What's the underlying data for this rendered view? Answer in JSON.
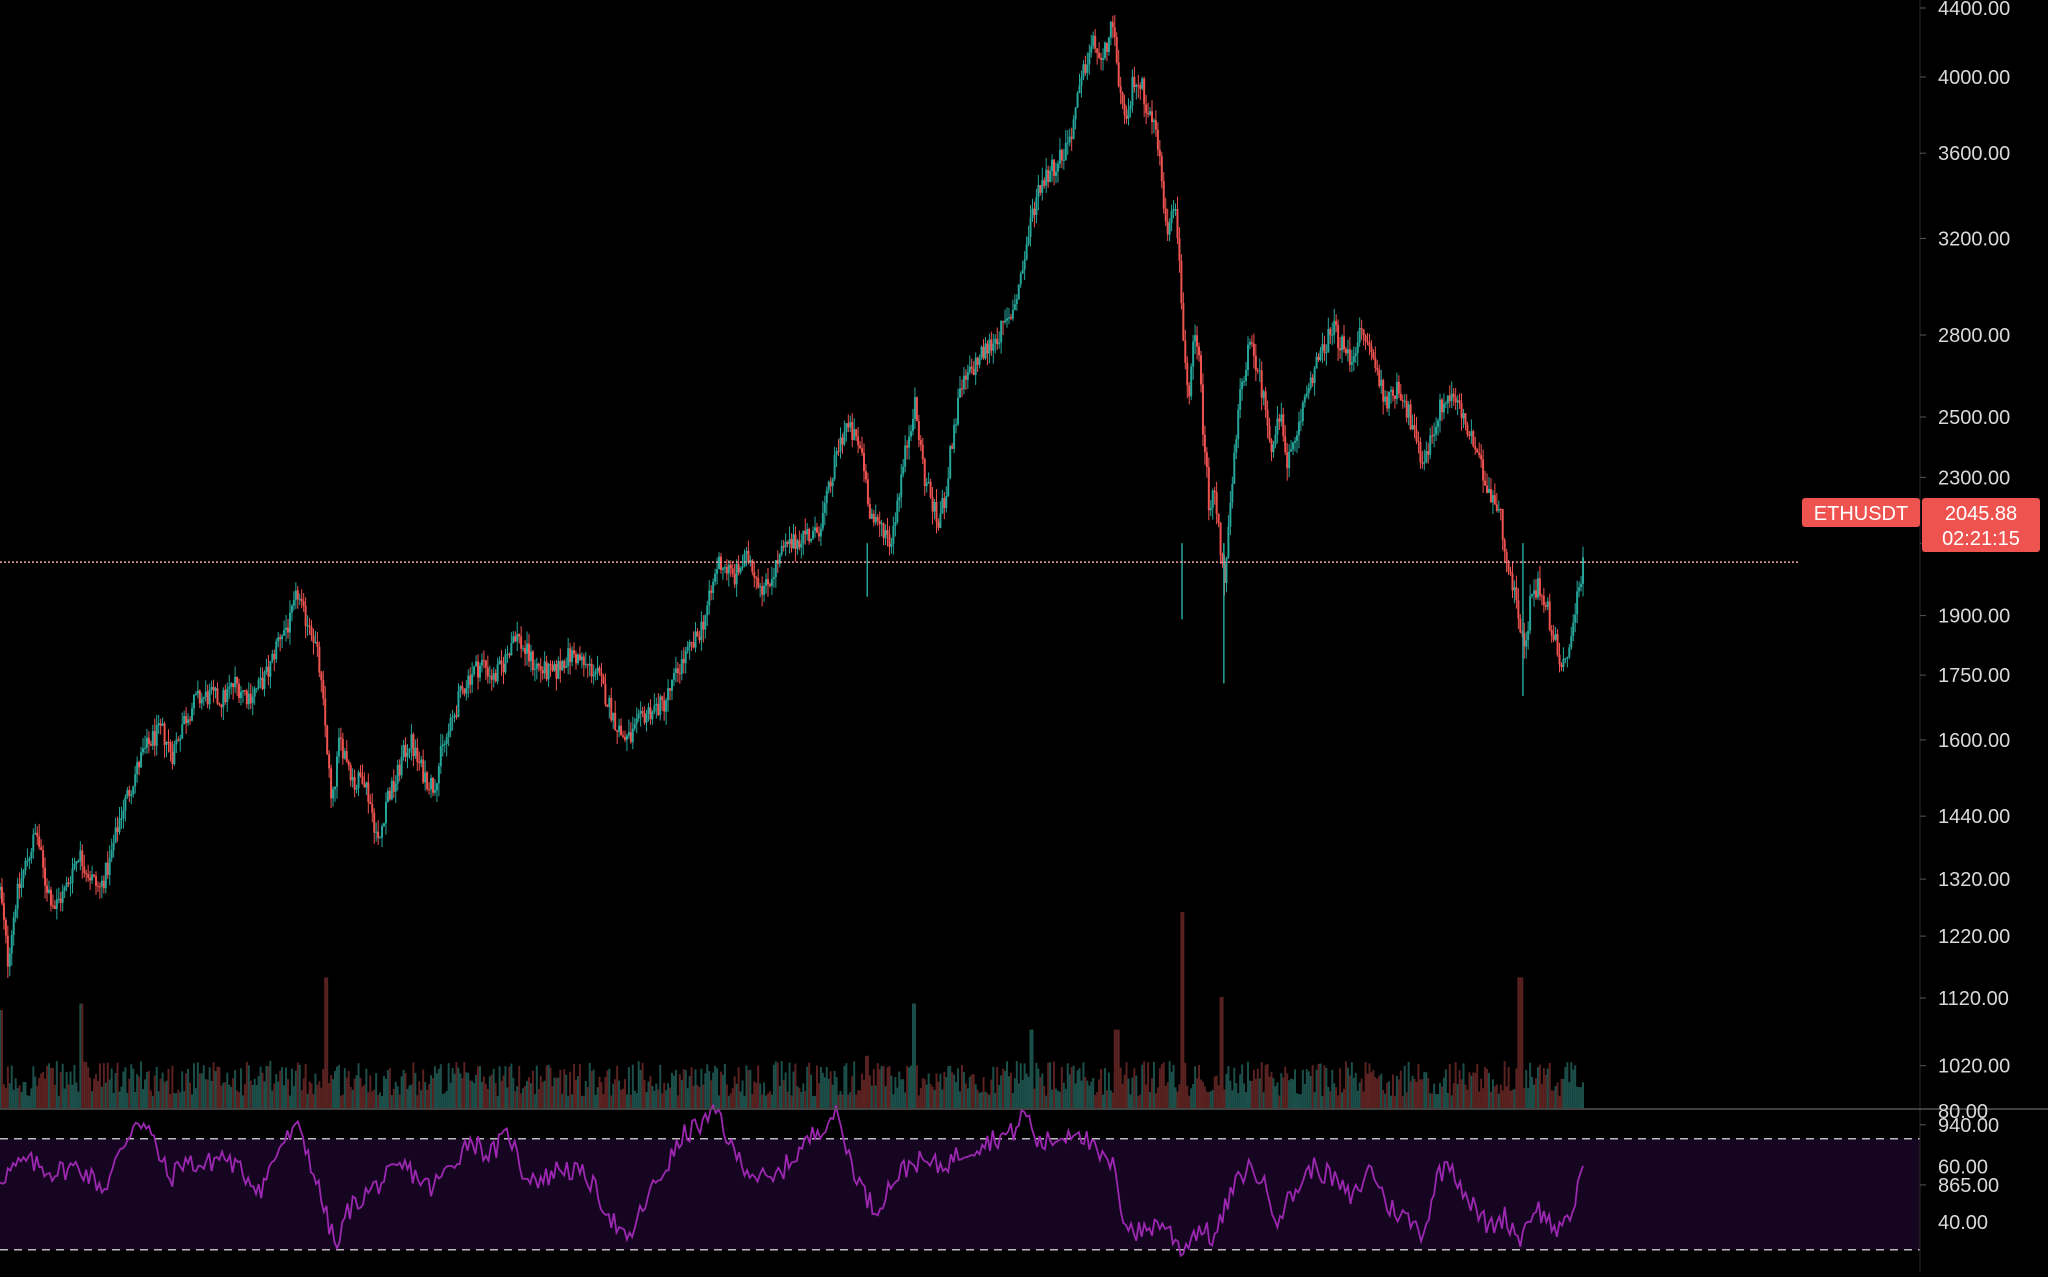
{
  "chart_data": {
    "type": "candlestick",
    "symbol": "ETHUSDT",
    "last_price": "2045.88",
    "countdown": "02:21:15",
    "price_scale": "log",
    "ylim": [
      1000,
      4400
    ],
    "price_ticks": [
      "4400.00",
      "4000.00",
      "3600.00",
      "3200.00",
      "2800.00",
      "2500.00",
      "2300.00",
      "2100.00",
      "1900.00",
      "1750.00",
      "1600.00",
      "1440.00",
      "1320.00",
      "1220.00",
      "1120.00",
      "1020.00",
      "940.00",
      "865.00"
    ],
    "price_tick_values": [
      4400,
      4000,
      3600,
      3200,
      2800,
      2500,
      2300,
      2100,
      1900,
      1750,
      1600,
      1440,
      1320,
      1220,
      1120,
      1020,
      940,
      865
    ],
    "rsi_ticks": [
      "80.00",
      "60.00",
      "40.00"
    ],
    "rsi_tick_values": [
      80,
      60,
      40
    ],
    "rsi_band": [
      70,
      30
    ],
    "colors": {
      "background": "#000000",
      "up": "#26a69a",
      "down": "#ef5350",
      "price_line": "#f4a0a0",
      "tag": "#ef5350",
      "rsi_line": "#9c27b0",
      "rsi_band_fill": "#160521"
    },
    "price_path": [
      [
        0,
        1300
      ],
      [
        6,
        1180
      ],
      [
        12,
        1280
      ],
      [
        20,
        1350
      ],
      [
        28,
        1410
      ],
      [
        34,
        1320
      ],
      [
        42,
        1270
      ],
      [
        50,
        1300
      ],
      [
        60,
        1370
      ],
      [
        68,
        1330
      ],
      [
        76,
        1300
      ],
      [
        84,
        1350
      ],
      [
        92,
        1440
      ],
      [
        100,
        1500
      ],
      [
        108,
        1560
      ],
      [
        116,
        1600
      ],
      [
        124,
        1620
      ],
      [
        132,
        1570
      ],
      [
        140,
        1640
      ],
      [
        150,
        1690
      ],
      [
        160,
        1700
      ],
      [
        170,
        1690
      ],
      [
        180,
        1730
      ],
      [
        190,
        1700
      ],
      [
        198,
        1720
      ],
      [
        206,
        1760
      ],
      [
        214,
        1850
      ],
      [
        222,
        1880
      ],
      [
        228,
        1960
      ],
      [
        232,
        1900
      ],
      [
        238,
        1880
      ],
      [
        244,
        1780
      ],
      [
        250,
        1600
      ],
      [
        254,
        1450
      ],
      [
        260,
        1600
      ],
      [
        266,
        1560
      ],
      [
        272,
        1500
      ],
      [
        278,
        1530
      ],
      [
        284,
        1460
      ],
      [
        290,
        1380
      ],
      [
        296,
        1480
      ],
      [
        302,
        1500
      ],
      [
        308,
        1560
      ],
      [
        314,
        1600
      ],
      [
        320,
        1550
      ],
      [
        326,
        1520
      ],
      [
        332,
        1500
      ],
      [
        338,
        1570
      ],
      [
        344,
        1620
      ],
      [
        350,
        1680
      ],
      [
        356,
        1730
      ],
      [
        362,
        1760
      ],
      [
        370,
        1780
      ],
      [
        378,
        1740
      ],
      [
        386,
        1780
      ],
      [
        394,
        1860
      ],
      [
        400,
        1820
      ],
      [
        408,
        1780
      ],
      [
        416,
        1760
      ],
      [
        424,
        1750
      ],
      [
        432,
        1790
      ],
      [
        440,
        1800
      ],
      [
        448,
        1770
      ],
      [
        456,
        1760
      ],
      [
        464,
        1700
      ],
      [
        470,
        1650
      ],
      [
        476,
        1610
      ],
      [
        482,
        1600
      ],
      [
        488,
        1630
      ],
      [
        494,
        1660
      ],
      [
        500,
        1670
      ],
      [
        508,
        1680
      ],
      [
        514,
        1720
      ],
      [
        520,
        1770
      ],
      [
        526,
        1800
      ],
      [
        532,
        1830
      ],
      [
        538,
        1880
      ],
      [
        544,
        1950
      ],
      [
        550,
        2050
      ],
      [
        556,
        2030
      ],
      [
        562,
        2000
      ],
      [
        568,
        2040
      ],
      [
        574,
        2060
      ],
      [
        580,
        2000
      ],
      [
        586,
        1970
      ],
      [
        592,
        2020
      ],
      [
        600,
        2080
      ],
      [
        608,
        2100
      ],
      [
        616,
        2130
      ],
      [
        624,
        2120
      ],
      [
        630,
        2180
      ],
      [
        636,
        2280
      ],
      [
        642,
        2400
      ],
      [
        648,
        2470
      ],
      [
        654,
        2430
      ],
      [
        660,
        2380
      ],
      [
        666,
        2200
      ],
      [
        670,
        2150
      ],
      [
        676,
        2150
      ],
      [
        682,
        2100
      ],
      [
        688,
        2250
      ],
      [
        694,
        2400
      ],
      [
        700,
        2550
      ],
      [
        704,
        2420
      ],
      [
        708,
        2300
      ],
      [
        712,
        2250
      ],
      [
        718,
        2150
      ],
      [
        724,
        2250
      ],
      [
        730,
        2450
      ],
      [
        736,
        2600
      ],
      [
        742,
        2650
      ],
      [
        748,
        2700
      ],
      [
        756,
        2750
      ],
      [
        764,
        2800
      ],
      [
        772,
        2850
      ],
      [
        778,
        2950
      ],
      [
        784,
        3100
      ],
      [
        790,
        3300
      ],
      [
        796,
        3450
      ],
      [
        802,
        3500
      ],
      [
        808,
        3550
      ],
      [
        814,
        3600
      ],
      [
        820,
        3700
      ],
      [
        826,
        3900
      ],
      [
        832,
        4100
      ],
      [
        838,
        4200
      ],
      [
        844,
        4050
      ],
      [
        850,
        4300
      ],
      [
        854,
        4150
      ],
      [
        858,
        3900
      ],
      [
        862,
        3700
      ],
      [
        868,
        4000
      ],
      [
        874,
        3950
      ],
      [
        880,
        3800
      ],
      [
        886,
        3700
      ],
      [
        890,
        3400
      ],
      [
        894,
        3250
      ],
      [
        898,
        3400
      ],
      [
        902,
        3200
      ],
      [
        906,
        2800
      ],
      [
        910,
        2500
      ],
      [
        914,
        2800
      ],
      [
        918,
        2700
      ],
      [
        922,
        2400
      ],
      [
        926,
        2200
      ],
      [
        930,
        2250
      ],
      [
        934,
        2100
      ],
      [
        938,
        2000
      ],
      [
        942,
        2200
      ],
      [
        946,
        2400
      ],
      [
        950,
        2600
      ],
      [
        956,
        2750
      ],
      [
        962,
        2700
      ],
      [
        968,
        2550
      ],
      [
        974,
        2400
      ],
      [
        980,
        2500
      ],
      [
        986,
        2350
      ],
      [
        992,
        2400
      ],
      [
        998,
        2550
      ],
      [
        1004,
        2650
      ],
      [
        1010,
        2700
      ],
      [
        1016,
        2780
      ],
      [
        1022,
        2820
      ],
      [
        1028,
        2750
      ],
      [
        1034,
        2700
      ],
      [
        1040,
        2800
      ],
      [
        1046,
        2780
      ],
      [
        1052,
        2700
      ],
      [
        1058,
        2600
      ],
      [
        1064,
        2550
      ],
      [
        1070,
        2620
      ],
      [
        1076,
        2550
      ],
      [
        1082,
        2450
      ],
      [
        1088,
        2350
      ],
      [
        1094,
        2400
      ],
      [
        1100,
        2500
      ],
      [
        1106,
        2560
      ],
      [
        1112,
        2580
      ],
      [
        1118,
        2520
      ],
      [
        1124,
        2450
      ],
      [
        1130,
        2380
      ],
      [
        1136,
        2300
      ],
      [
        1142,
        2250
      ],
      [
        1148,
        2200
      ],
      [
        1152,
        2100
      ],
      [
        1156,
        2000
      ],
      [
        1160,
        1960
      ],
      [
        1164,
        1880
      ],
      [
        1168,
        1800
      ],
      [
        1172,
        1950
      ],
      [
        1178,
        1980
      ],
      [
        1184,
        1940
      ],
      [
        1188,
        1850
      ],
      [
        1192,
        1820
      ],
      [
        1196,
        1780
      ],
      [
        1200,
        1800
      ],
      [
        1204,
        1860
      ],
      [
        1208,
        1960
      ],
      [
        1212,
        2045
      ]
    ],
    "rsi_path": [
      [
        0,
        56
      ],
      [
        20,
        62
      ],
      [
        40,
        58
      ],
      [
        60,
        60
      ],
      [
        80,
        52
      ],
      [
        95,
        68
      ],
      [
        105,
        78
      ],
      [
        115,
        72
      ],
      [
        130,
        55
      ],
      [
        140,
        62
      ],
      [
        155,
        60
      ],
      [
        170,
        64
      ],
      [
        185,
        58
      ],
      [
        200,
        52
      ],
      [
        215,
        68
      ],
      [
        230,
        74
      ],
      [
        240,
        58
      ],
      [
        250,
        42
      ],
      [
        258,
        30
      ],
      [
        266,
        44
      ],
      [
        280,
        50
      ],
      [
        296,
        56
      ],
      [
        310,
        60
      ],
      [
        330,
        52
      ],
      [
        345,
        60
      ],
      [
        360,
        70
      ],
      [
        375,
        64
      ],
      [
        390,
        72
      ],
      [
        400,
        58
      ],
      [
        415,
        55
      ],
      [
        430,
        60
      ],
      [
        450,
        56
      ],
      [
        465,
        44
      ],
      [
        480,
        32
      ],
      [
        495,
        48
      ],
      [
        510,
        60
      ],
      [
        525,
        72
      ],
      [
        540,
        76
      ],
      [
        550,
        80
      ],
      [
        560,
        66
      ],
      [
        575,
        58
      ],
      [
        590,
        54
      ],
      [
        605,
        62
      ],
      [
        620,
        70
      ],
      [
        632,
        76
      ],
      [
        640,
        80
      ],
      [
        650,
        64
      ],
      [
        660,
        52
      ],
      [
        670,
        44
      ],
      [
        685,
        56
      ],
      [
        700,
        62
      ],
      [
        720,
        60
      ],
      [
        740,
        66
      ],
      [
        760,
        70
      ],
      [
        775,
        72
      ],
      [
        785,
        80
      ],
      [
        795,
        68
      ],
      [
        810,
        70
      ],
      [
        825,
        74
      ],
      [
        840,
        64
      ],
      [
        852,
        60
      ],
      [
        860,
        42
      ],
      [
        870,
        36
      ],
      [
        880,
        38
      ],
      [
        890,
        40
      ],
      [
        905,
        30
      ],
      [
        918,
        38
      ],
      [
        930,
        34
      ],
      [
        942,
        50
      ],
      [
        955,
        60
      ],
      [
        965,
        56
      ],
      [
        978,
        42
      ],
      [
        990,
        50
      ],
      [
        1005,
        60
      ],
      [
        1020,
        56
      ],
      [
        1035,
        48
      ],
      [
        1050,
        60
      ],
      [
        1062,
        46
      ],
      [
        1075,
        42
      ],
      [
        1090,
        36
      ],
      [
        1100,
        56
      ],
      [
        1110,
        62
      ],
      [
        1120,
        52
      ],
      [
        1130,
        44
      ],
      [
        1140,
        38
      ],
      [
        1152,
        42
      ],
      [
        1164,
        34
      ],
      [
        1175,
        46
      ],
      [
        1186,
        40
      ],
      [
        1196,
        36
      ],
      [
        1204,
        44
      ],
      [
        1212,
        62
      ]
    ],
    "volume_spikes": [
      [
        0,
        75
      ],
      [
        62,
        80
      ],
      [
        250,
        100
      ],
      [
        664,
        40
      ],
      [
        700,
        80
      ],
      [
        790,
        60
      ],
      [
        855,
        60
      ],
      [
        905,
        150
      ],
      [
        935,
        85
      ],
      [
        1164,
        100
      ]
    ]
  }
}
